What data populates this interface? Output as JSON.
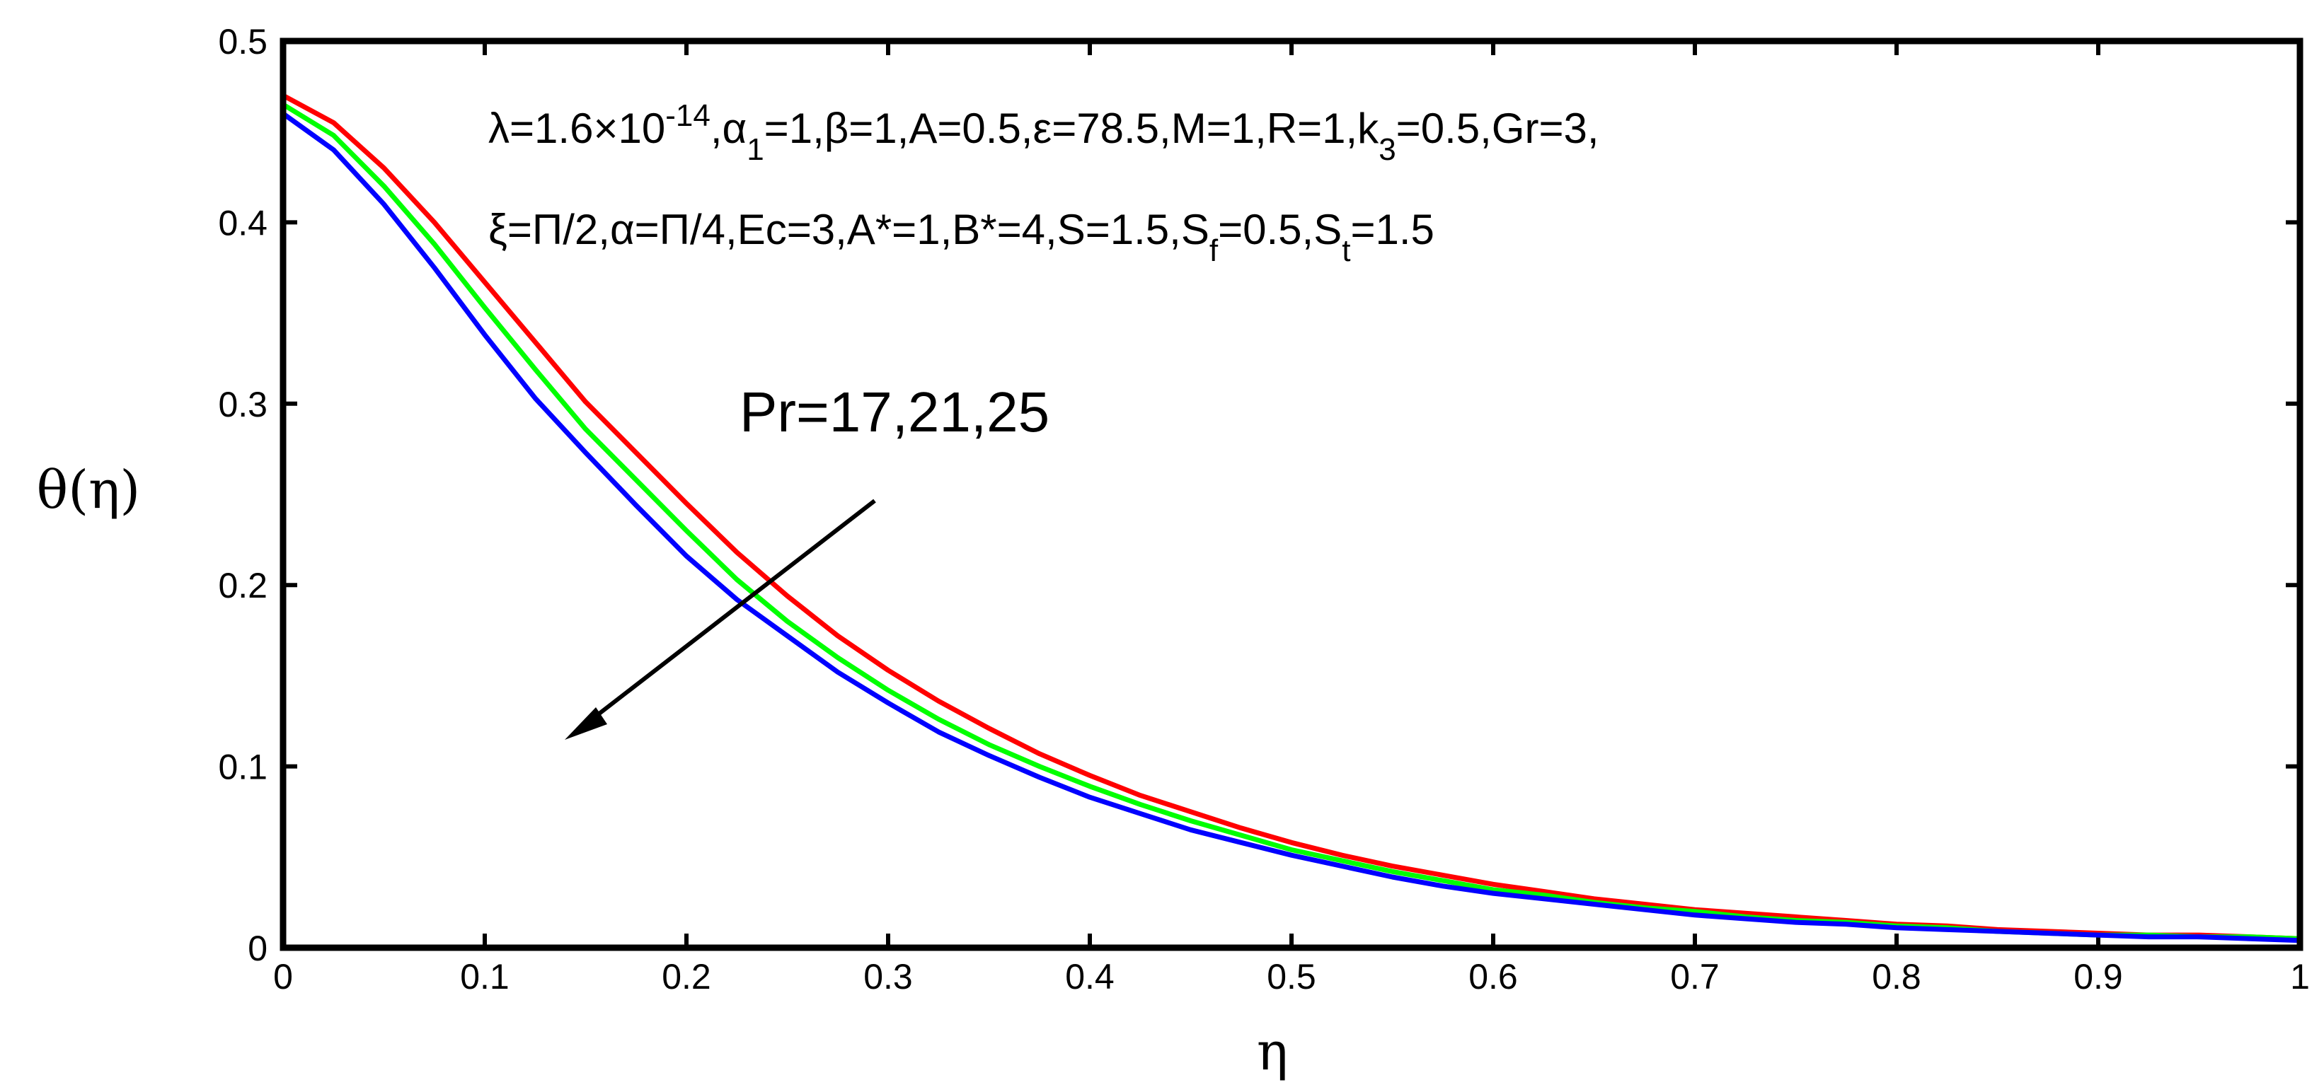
{
  "chart_data": {
    "type": "line",
    "xlabel": "η",
    "ylabel": "θ(η)",
    "xlim": [
      0,
      1
    ],
    "ylim": [
      0,
      0.5
    ],
    "xticks": [
      "0",
      "0.1",
      "0.2",
      "0.3",
      "0.4",
      "0.5",
      "0.6",
      "0.7",
      "0.8",
      "0.9",
      "1"
    ],
    "yticks": [
      "0",
      "0.1",
      "0.2",
      "0.3",
      "0.4",
      "0.5"
    ],
    "grid": false,
    "x": [
      0,
      0.025,
      0.05,
      0.075,
      0.1,
      0.125,
      0.15,
      0.175,
      0.2,
      0.225,
      0.25,
      0.275,
      0.3,
      0.325,
      0.35,
      0.375,
      0.4,
      0.425,
      0.45,
      0.475,
      0.5,
      0.525,
      0.55,
      0.575,
      0.6,
      0.625,
      0.65,
      0.675,
      0.7,
      0.725,
      0.75,
      0.775,
      0.8,
      0.825,
      0.85,
      0.875,
      0.9,
      0.925,
      0.95,
      0.975,
      1
    ],
    "series": [
      {
        "color": "#ff0000",
        "values": [
          0.47,
          0.455,
          0.43,
          0.4,
          0.367,
          0.334,
          0.301,
          0.273,
          0.245,
          0.218,
          0.194,
          0.172,
          0.153,
          0.136,
          0.121,
          0.107,
          0.095,
          0.084,
          0.075,
          0.066,
          0.058,
          0.051,
          0.045,
          0.04,
          0.035,
          0.031,
          0.027,
          0.024,
          0.021,
          0.019,
          0.017,
          0.015,
          0.013,
          0.012,
          0.01,
          0.009,
          0.008,
          0.007,
          0.007,
          0.006,
          0.005
        ]
      },
      {
        "color": "#00ff00",
        "values": [
          0.465,
          0.448,
          0.42,
          0.388,
          0.353,
          0.319,
          0.286,
          0.258,
          0.23,
          0.203,
          0.18,
          0.16,
          0.142,
          0.126,
          0.112,
          0.1,
          0.089,
          0.079,
          0.07,
          0.062,
          0.054,
          0.048,
          0.042,
          0.037,
          0.032,
          0.029,
          0.025,
          0.022,
          0.02,
          0.017,
          0.015,
          0.014,
          0.012,
          0.011,
          0.009,
          0.008,
          0.007,
          0.007,
          0.006,
          0.006,
          0.005
        ]
      },
      {
        "color": "#0000ff",
        "values": [
          0.46,
          0.44,
          0.41,
          0.375,
          0.338,
          0.303,
          0.273,
          0.244,
          0.216,
          0.192,
          0.172,
          0.152,
          0.135,
          0.119,
          0.106,
          0.094,
          0.083,
          0.074,
          0.065,
          0.058,
          0.051,
          0.045,
          0.039,
          0.034,
          0.03,
          0.027,
          0.024,
          0.021,
          0.018,
          0.016,
          0.014,
          0.013,
          0.011,
          0.01,
          0.009,
          0.008,
          0.007,
          0.006,
          0.006,
          0.005,
          0.004
        ]
      }
    ],
    "annotation_line1": {
      "a": "λ=1.6×10",
      "sup": "-14",
      "b": ",α",
      "sub1": "1",
      "c": "=1,β=1,A=0.5,ε=78.5,M=1,R=1,k",
      "sub2": "3",
      "d": "=0.5,Gr=3,"
    },
    "annotation_line2": {
      "a": "ξ=Π/2,α=Π/4,Ec=3,A*=1,B*=4,S=1.5,S",
      "sub1": "f",
      "b": "=0.5,S",
      "sub2": "t",
      "c": "=1.5"
    },
    "arrow_label": "Pr=17,21,25"
  }
}
